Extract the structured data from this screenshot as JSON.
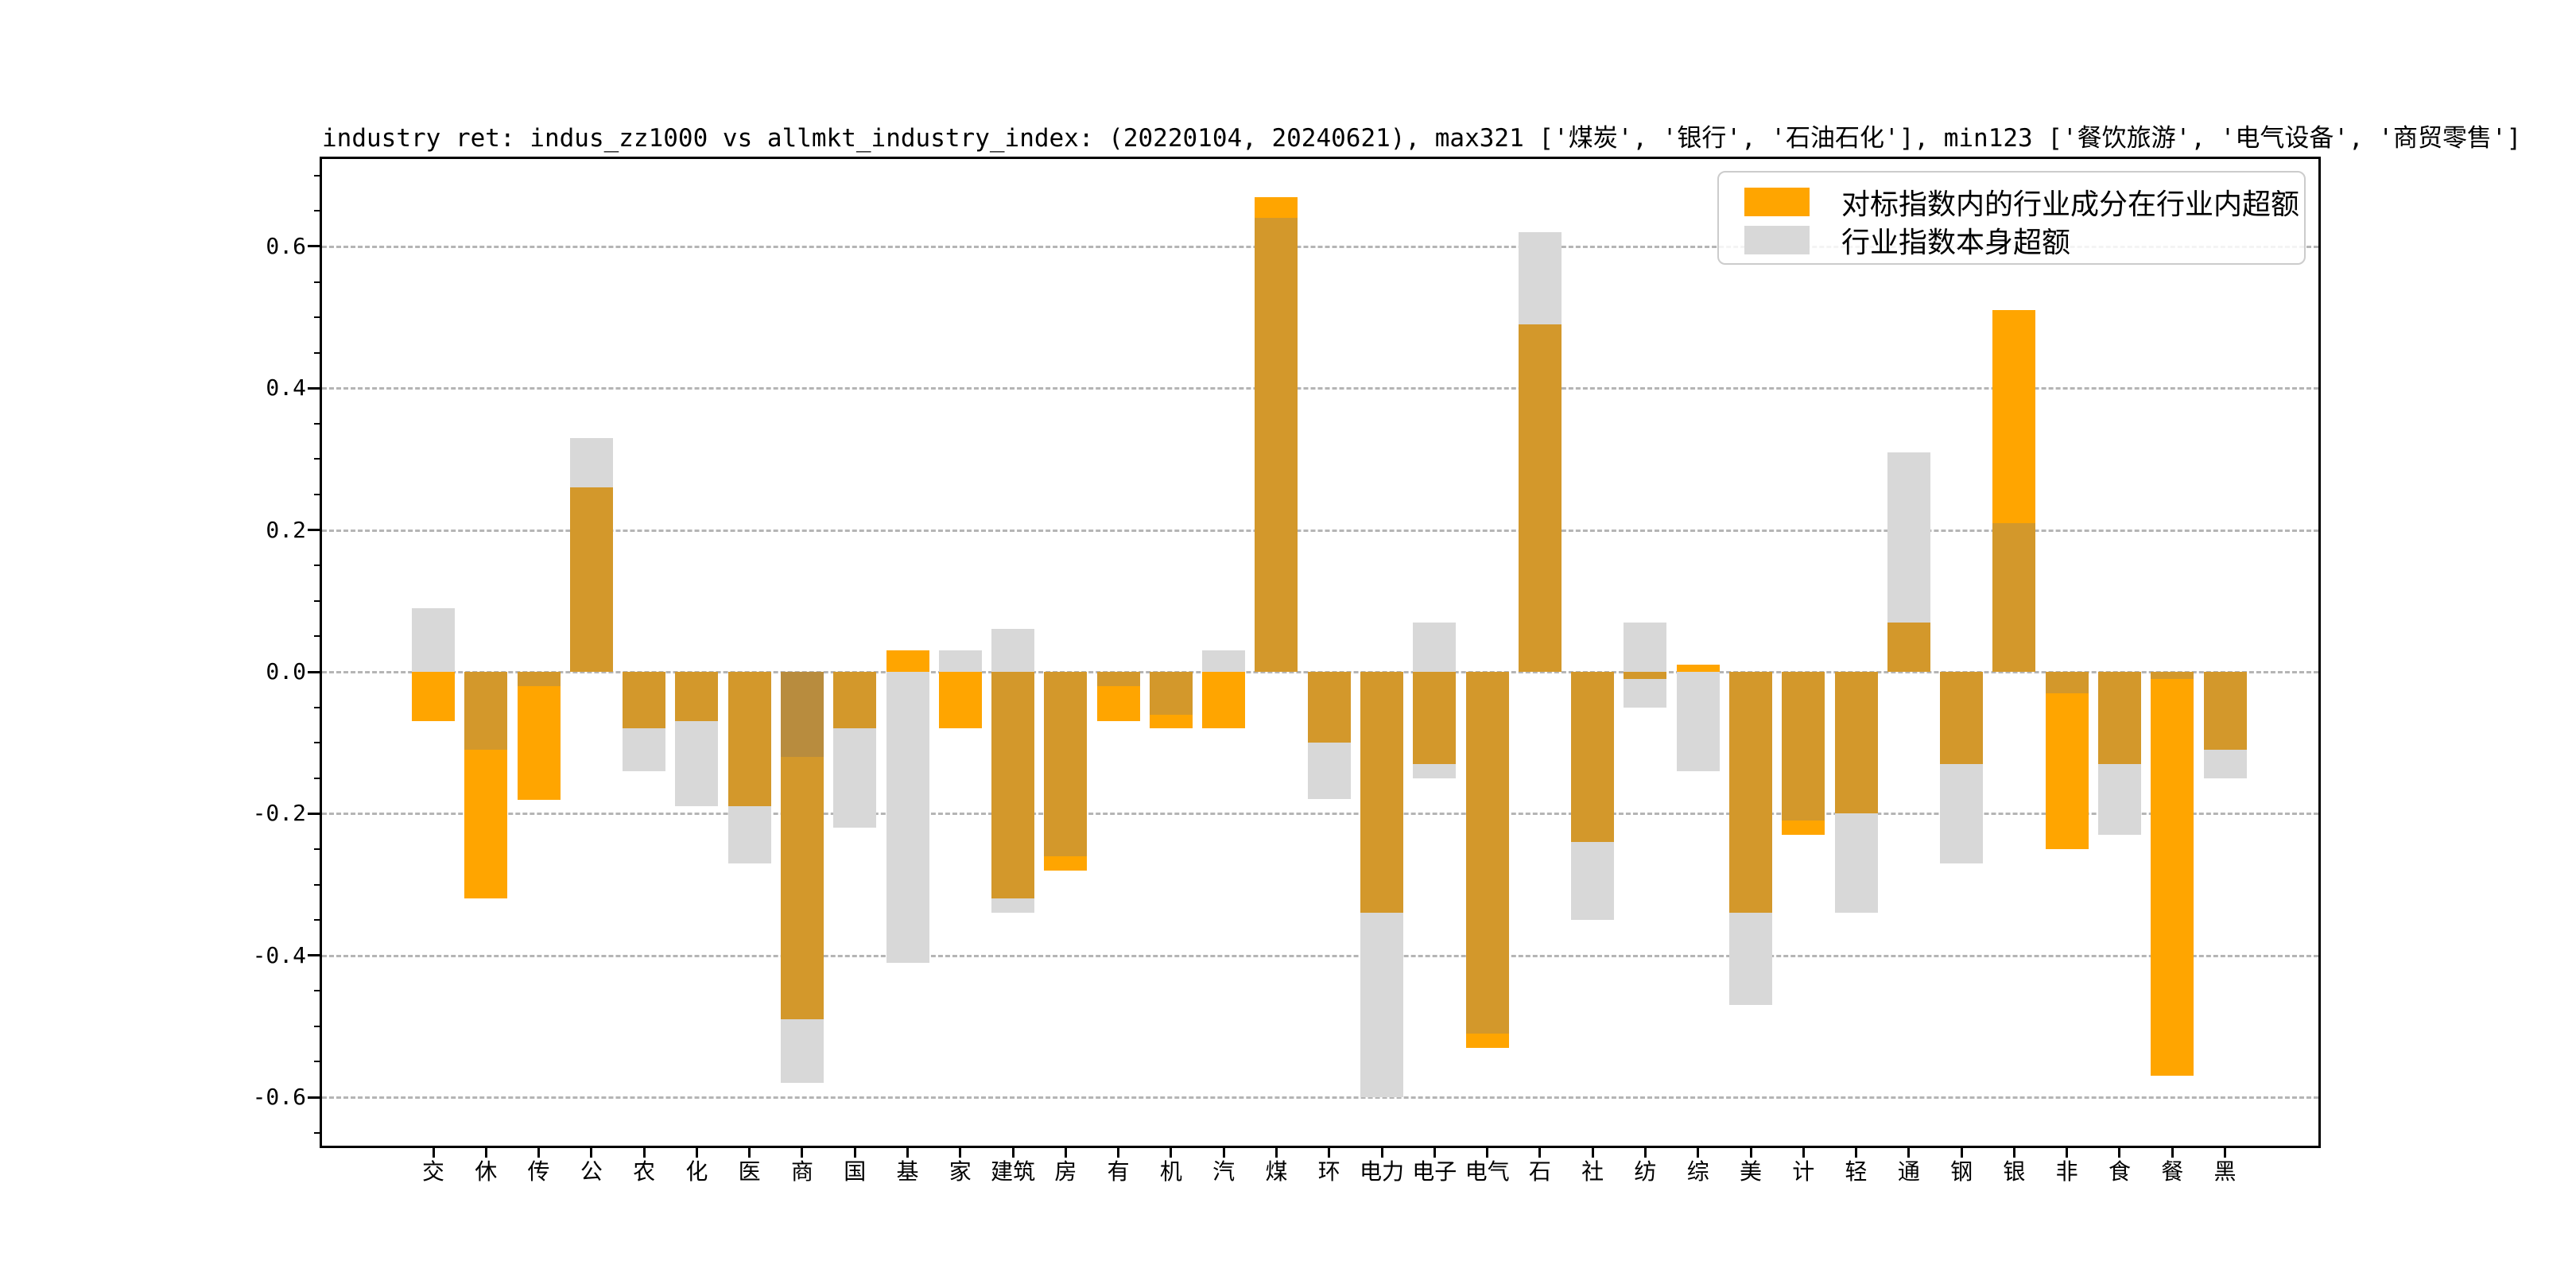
{
  "title": "industry ret: indus_zz1000 vs allmkt_industry_index: (20220104, 20240621), max321 ['煤炭', '银行', '石油石化'], min123 ['餐饮旅游', '电气设备', '商贸零售']",
  "colors": {
    "orange": "#FFA500",
    "overlap_ocher": "#D3982B",
    "overlap_dark": "#B88C3E",
    "gray": "#D8D8D8",
    "grid": "#B5B5B5",
    "spine": "#000000",
    "legend_border": "#CCCCCC"
  },
  "legend": {
    "position": "upper right",
    "items": [
      {
        "label": "对标指数内的行业成分在行业内超额",
        "color": "#FFA500"
      },
      {
        "label": "行业指数本身超额",
        "color": "#D8D8D8"
      }
    ]
  },
  "chart_data": {
    "type": "bar",
    "note": "Two overlaid bar series drawn from zero; where they overlap the orange renders as ocher. 商 shows an extra darker overlap band; 建筑/电子/纺 have an extra small gray bar.",
    "categories": [
      "交",
      "休",
      "传",
      "公",
      "农",
      "化",
      "医",
      "商",
      "国",
      "基",
      "家",
      "建筑",
      "房",
      "有",
      "机",
      "汽",
      "煤",
      "环",
      "电力",
      "电子",
      "电气",
      "石",
      "社",
      "纺",
      "综",
      "美",
      "计",
      "轻",
      "通",
      "钢",
      "银",
      "非",
      "食",
      "餐",
      "黑"
    ],
    "series": [
      {
        "name": "对标指数内的行业成分在行业内超额",
        "color": "#FFA500",
        "values": [
          -0.07,
          -0.32,
          -0.18,
          0.26,
          -0.08,
          -0.07,
          -0.19,
          -0.49,
          -0.08,
          0.03,
          -0.08,
          -0.32,
          -0.28,
          -0.07,
          -0.08,
          -0.08,
          0.67,
          -0.1,
          -0.34,
          -0.13,
          -0.53,
          0.49,
          -0.24,
          -0.01,
          0.01,
          -0.34,
          -0.23,
          -0.2,
          0.07,
          -0.13,
          0.51,
          -0.25,
          -0.13,
          -0.57,
          -0.11
        ]
      },
      {
        "name": "行业指数本身超额",
        "color": "#D8D8D8",
        "values": [
          0.09,
          -0.11,
          -0.02,
          0.33,
          -0.14,
          -0.19,
          -0.27,
          -0.58,
          -0.22,
          -0.41,
          0.03,
          -0.34,
          -0.26,
          -0.02,
          -0.06,
          0.03,
          0.64,
          -0.18,
          -0.6,
          -0.15,
          -0.51,
          0.62,
          -0.35,
          -0.05,
          -0.14,
          -0.47,
          -0.21,
          -0.34,
          0.31,
          -0.27,
          0.21,
          -0.03,
          -0.23,
          -0.01,
          -0.15
        ],
        "extra_values": [
          null,
          null,
          null,
          null,
          null,
          null,
          null,
          -0.12,
          null,
          null,
          null,
          0.06,
          null,
          null,
          null,
          null,
          null,
          null,
          null,
          0.07,
          null,
          null,
          null,
          0.07,
          null,
          null,
          null,
          null,
          null,
          null,
          null,
          null,
          null,
          null,
          null
        ]
      }
    ],
    "xlabel": "",
    "ylabel": "",
    "yticks": [
      0.6,
      0.4,
      0.2,
      0.0,
      -0.2,
      -0.4,
      -0.6
    ],
    "ytick_labels": [
      "0.6",
      "0.4",
      "0.2",
      "0.0",
      "-0.2",
      "-0.4",
      "-0.6"
    ],
    "ylim": [
      -0.668,
      0.723
    ],
    "grid": {
      "axis": "y",
      "style": "dashed"
    },
    "legend_position": "upper right"
  }
}
